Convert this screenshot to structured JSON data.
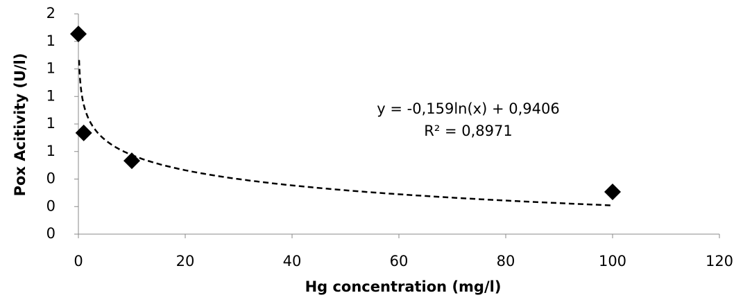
{
  "chart_data": {
    "type": "scatter",
    "x_label": "Hg concentration (mg/l)",
    "y_label": "Pox Acitivity (U/l)",
    "x": [
      0,
      1,
      10,
      100
    ],
    "series": [
      {
        "color": "#000000",
        "values": [
          1.454,
          0.735,
          0.533,
          0.307
        ]
      }
    ],
    "xlim": [
      0,
      120
    ],
    "xticks": [
      0,
      20,
      40,
      60,
      80,
      100,
      120
    ],
    "ylim": [
      0,
      1.6
    ],
    "yticks": [
      0,
      {
        "value": 0.2,
        "label": "0"
      },
      {
        "value": 0.4,
        "label": "0"
      },
      {
        "value": 0.6,
        "label": "1"
      },
      {
        "value": 0.8,
        "label": "1"
      },
      {
        "value": 1.0,
        "label": "1"
      },
      {
        "value": 1.2,
        "label": "1"
      },
      {
        "value": 1.4,
        "label": "1"
      },
      {
        "value": 1.6,
        "label": "2"
      }
    ],
    "trendline": {
      "kind": "log",
      "slope": -0.159,
      "intercept": 0.9406,
      "color": "#000000",
      "equation": "y = -0,159ln(x) + 0,9406",
      "r_squared": "R² = 0,8971"
    }
  }
}
